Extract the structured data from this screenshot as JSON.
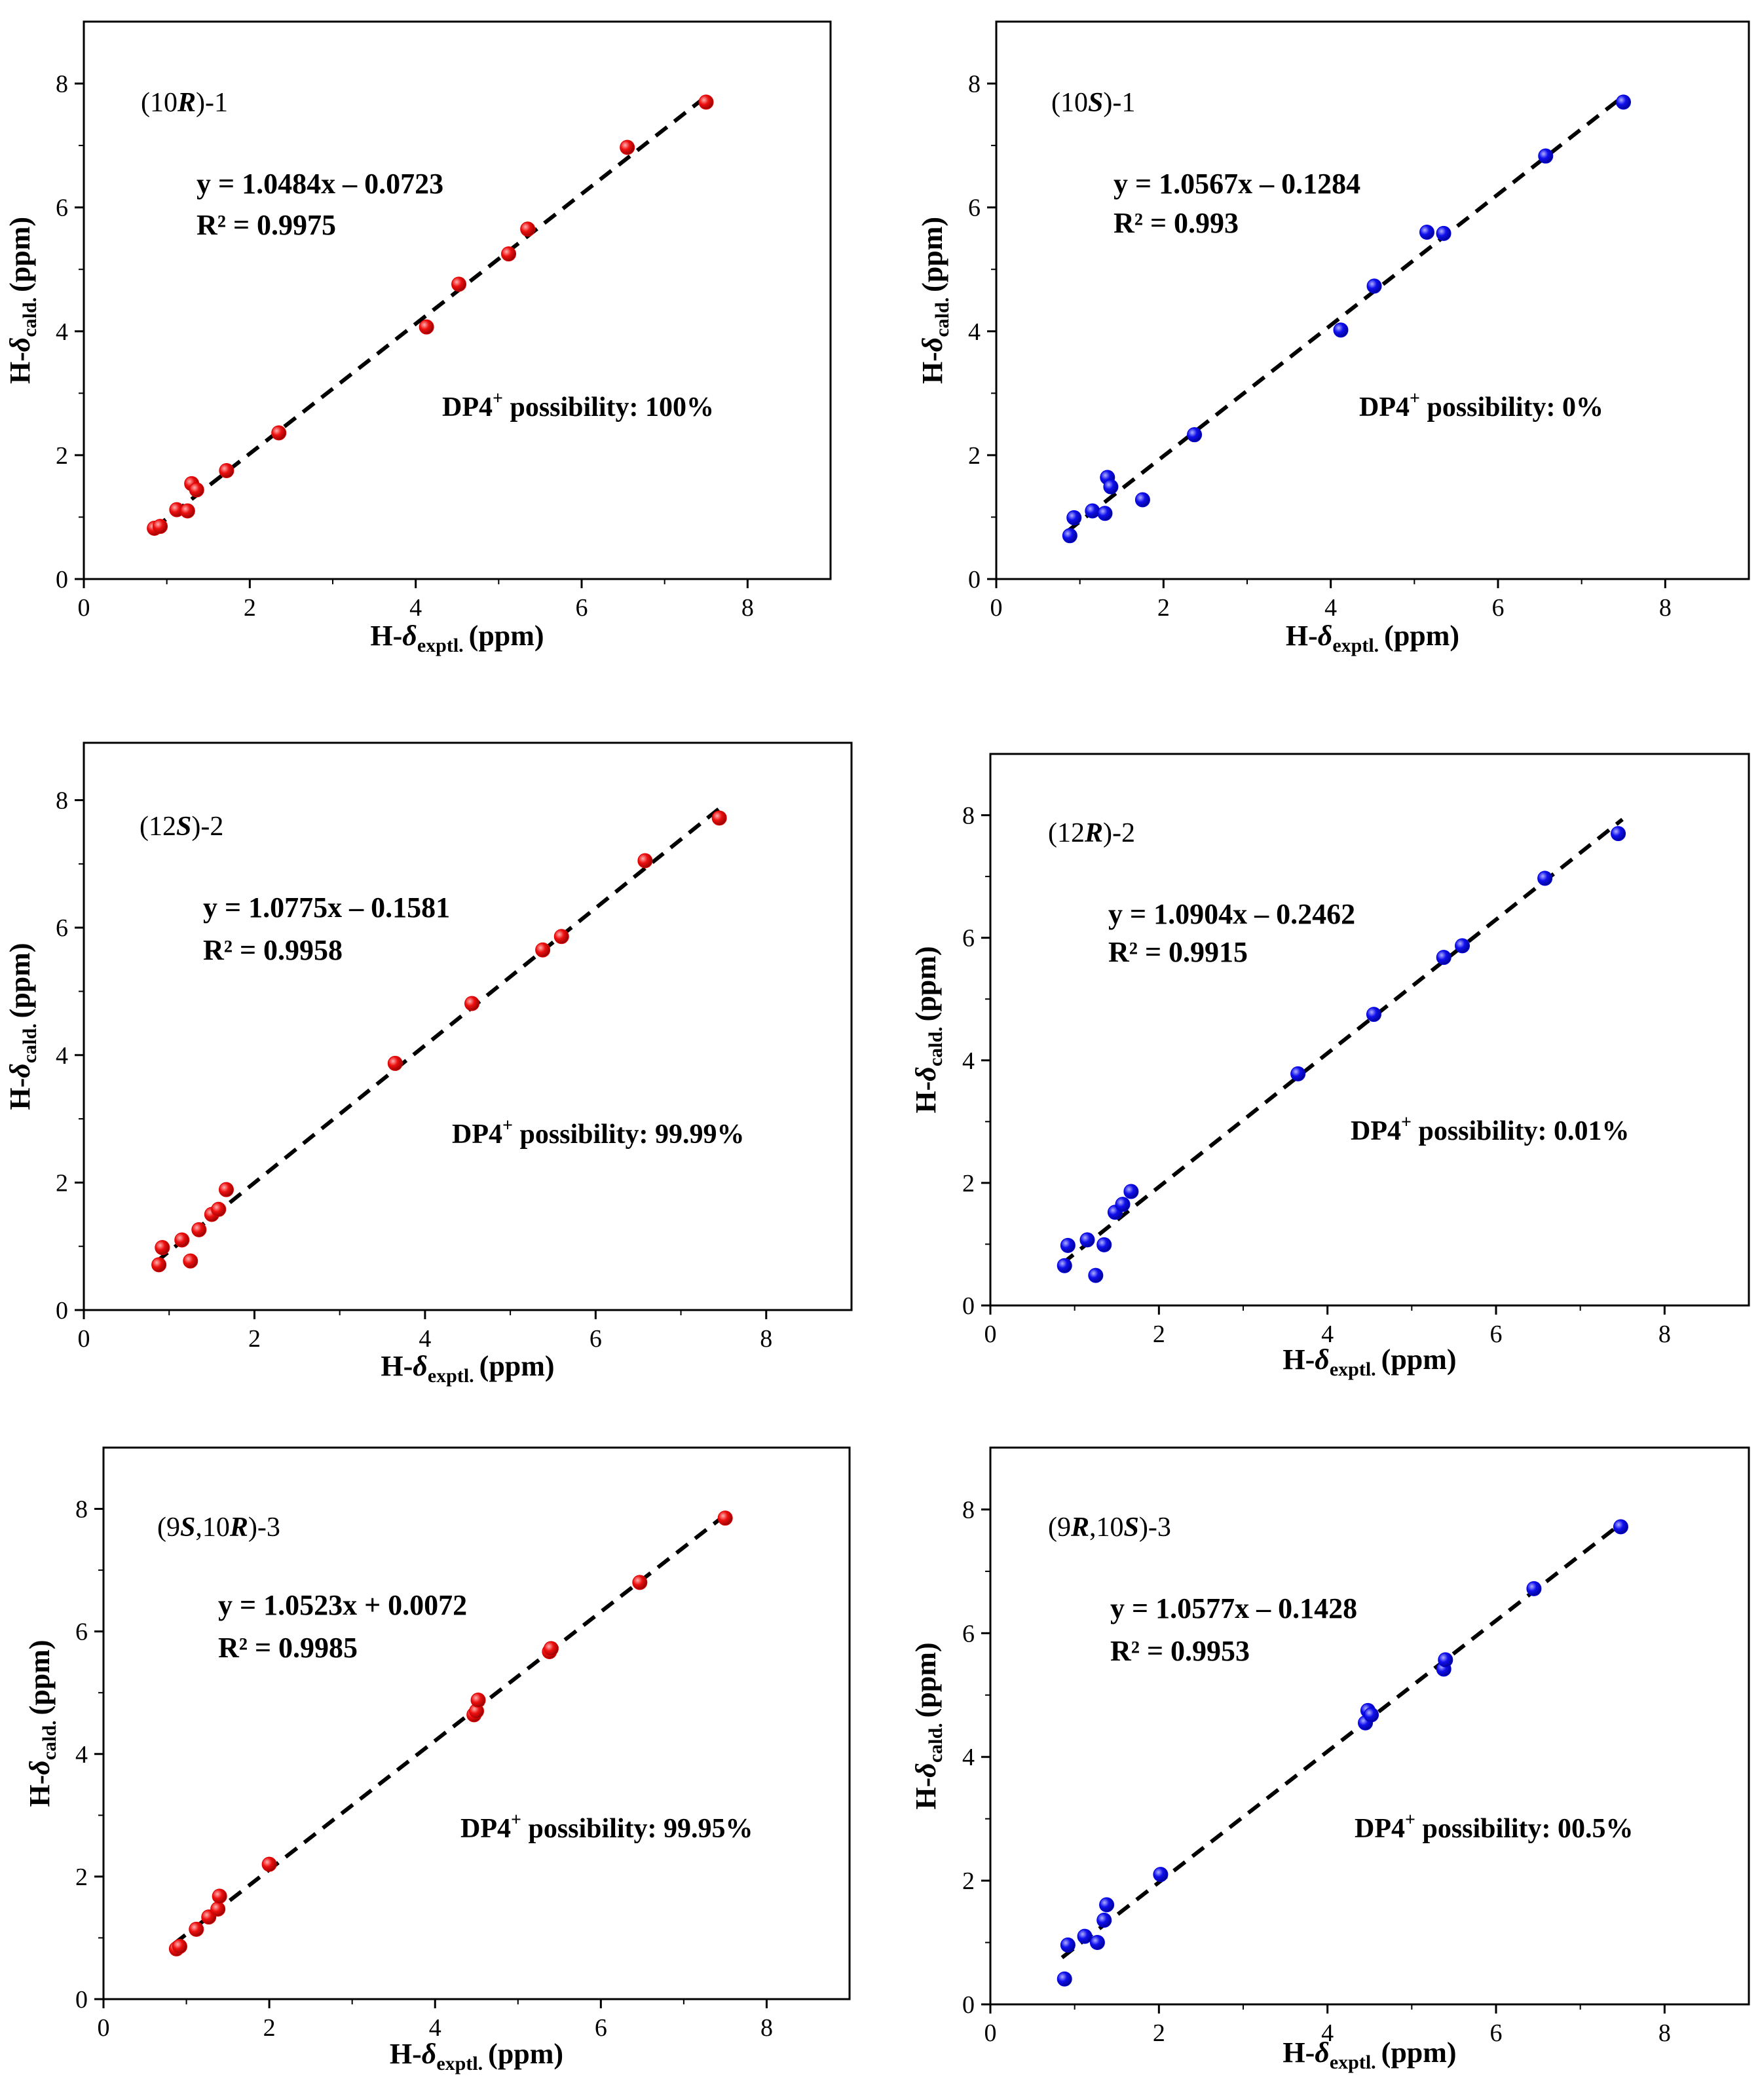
{
  "figure": {
    "axis_unit_label": "(ppm)",
    "axis_prefix": "H-",
    "axis_delta": "δ",
    "x_subscript": "exptl.",
    "y_subscript": "cald.",
    "dp4_label": "DP4",
    "dp4_sup": "+",
    "dp4_text": " possibility: ",
    "colors": {
      "red": "#e00000",
      "blue": "#0000e0",
      "line": "#000000"
    }
  },
  "chart_data": [
    {
      "type": "scatter",
      "id": "p1",
      "title_parts": [
        "(10",
        "R",
        ")-1"
      ],
      "equation": "y = 1.0484x – 0.0723",
      "r2": "R² = 0.9975",
      "dp4_value": "100%",
      "color": "#e00000",
      "slope": 1.0484,
      "intercept": -0.0723,
      "xlim": [
        0,
        9
      ],
      "ylim": [
        0,
        9
      ],
      "xticks": [
        0,
        2,
        4,
        6,
        8
      ],
      "yticks": [
        0,
        2,
        4,
        6,
        8
      ],
      "xlabel": "H-δexptl. (ppm)",
      "ylabel": "H-δcald. (ppm)",
      "x": [
        0.85,
        0.92,
        1.12,
        1.25,
        1.3,
        1.36,
        1.72,
        2.35,
        4.13,
        4.52,
        5.12,
        5.35,
        6.55,
        7.5
      ],
      "y": [
        0.82,
        0.85,
        1.12,
        1.1,
        1.54,
        1.44,
        1.75,
        2.36,
        4.07,
        4.76,
        5.25,
        5.65,
        6.97,
        7.7
      ],
      "fit_x": [
        0.85,
        7.5
      ]
    },
    {
      "type": "scatter",
      "id": "p2",
      "title_parts": [
        "(10",
        "S",
        ")-1"
      ],
      "equation": "y = 1.0567x – 0.1284",
      "r2": "R² = 0.993",
      "dp4_value": "0%",
      "color": "#0000e0",
      "slope": 1.0567,
      "intercept": -0.1284,
      "xlim": [
        0,
        9
      ],
      "ylim": [
        0,
        9
      ],
      "xticks": [
        0,
        2,
        4,
        6,
        8
      ],
      "yticks": [
        0,
        2,
        4,
        6,
        8
      ],
      "xlabel": "H-δexptl. (ppm)",
      "ylabel": "H-δcald. (ppm)",
      "x": [
        0.88,
        0.93,
        1.15,
        1.3,
        1.33,
        1.37,
        1.75,
        2.37,
        4.12,
        4.52,
        5.15,
        5.35,
        6.57,
        7.5
      ],
      "y": [
        0.7,
        0.99,
        1.1,
        1.06,
        1.64,
        1.49,
        1.28,
        2.33,
        4.02,
        4.73,
        5.6,
        5.58,
        6.83,
        7.7
      ],
      "fit_x": [
        0.85,
        7.5
      ]
    },
    {
      "type": "scatter",
      "id": "p3",
      "title_parts": [
        "(12",
        "S",
        ")-2"
      ],
      "equation": "y = 1.0775x – 0.1581",
      "r2": "R² = 0.9958",
      "dp4_value": "99.99%",
      "color": "#e00000",
      "slope": 1.0775,
      "intercept": -0.1581,
      "xlim": [
        0,
        9
      ],
      "ylim": [
        0,
        8.9
      ],
      "xticks": [
        0,
        2,
        4,
        6,
        8
      ],
      "yticks": [
        0,
        2,
        4,
        6,
        8
      ],
      "xlabel": "H-δexptl. (ppm)",
      "ylabel": "H-δcald. (ppm)",
      "x": [
        0.88,
        0.92,
        1.15,
        1.25,
        1.35,
        1.5,
        1.58,
        1.67,
        3.65,
        4.55,
        5.38,
        5.6,
        6.58,
        7.45
      ],
      "y": [
        0.71,
        0.98,
        1.1,
        0.77,
        1.26,
        1.5,
        1.58,
        1.89,
        3.87,
        4.81,
        5.65,
        5.86,
        7.05,
        7.72
      ],
      "fit_x": [
        0.85,
        7.5
      ]
    },
    {
      "type": "scatter",
      "id": "p4",
      "title_parts": [
        "(12",
        "R",
        ")-2"
      ],
      "equation": "y = 1.0904x – 0.2462",
      "r2": "R² = 0.9915",
      "dp4_value": "0.01%",
      "color": "#0000e0",
      "slope": 1.0904,
      "intercept": -0.2462,
      "xlim": [
        0,
        9
      ],
      "ylim": [
        0,
        9
      ],
      "xticks": [
        0,
        2,
        4,
        6,
        8
      ],
      "yticks": [
        0,
        2,
        4,
        6,
        8
      ],
      "xlabel": "H-δexptl. (ppm)",
      "ylabel": "H-δcald. (ppm)",
      "x": [
        0.88,
        0.92,
        1.15,
        1.25,
        1.35,
        1.48,
        1.57,
        1.67,
        3.65,
        4.55,
        5.38,
        5.6,
        6.58,
        7.45
      ],
      "y": [
        0.65,
        0.98,
        1.07,
        0.49,
        0.99,
        1.52,
        1.65,
        1.86,
        3.78,
        4.75,
        5.68,
        5.87,
        6.97,
        7.7
      ],
      "fit_x": [
        0.85,
        7.5
      ]
    },
    {
      "type": "scatter",
      "id": "p5",
      "title_parts": [
        "(9",
        "S",
        ",10",
        "R",
        ")-3"
      ],
      "equation": "y = 1.0523x + 0.0072",
      "r2": "R² = 0.9985",
      "dp4_value": "99.95%",
      "color": "#e00000",
      "slope": 1.0523,
      "intercept": 0.0072,
      "xlim": [
        0,
        9
      ],
      "ylim": [
        0,
        9
      ],
      "xticks": [
        0,
        2,
        4,
        6,
        8
      ],
      "yticks": [
        0,
        2,
        4,
        6,
        8
      ],
      "xlabel": "H-δexptl. (ppm)",
      "ylabel": "H-δcald. (ppm)",
      "x": [
        0.88,
        0.92,
        1.12,
        1.27,
        1.38,
        1.4,
        2.0,
        4.47,
        4.5,
        4.52,
        5.38,
        5.4,
        6.47,
        7.5
      ],
      "y": [
        0.82,
        0.86,
        1.14,
        1.34,
        1.47,
        1.68,
        2.2,
        4.64,
        4.7,
        4.88,
        5.67,
        5.72,
        6.8,
        7.85
      ],
      "fit_x": [
        0.85,
        7.5
      ]
    },
    {
      "type": "scatter",
      "id": "p6",
      "title_parts": [
        "(9",
        "R",
        ",10",
        "S",
        ")-3"
      ],
      "equation": "y = 1.0577x – 0.1428",
      "r2": "R² = 0.9953",
      "dp4_value": "00.5%",
      "color": "#0000e0",
      "slope": 1.0577,
      "intercept": -0.1428,
      "xlim": [
        0,
        9
      ],
      "ylim": [
        0,
        9
      ],
      "xticks": [
        0,
        2,
        4,
        6,
        8
      ],
      "yticks": [
        0,
        2,
        4,
        6,
        8
      ],
      "xlabel": "H-δexptl. (ppm)",
      "ylabel": "H-δcald. (ppm)",
      "x": [
        0.88,
        0.92,
        1.12,
        1.27,
        1.35,
        1.38,
        2.02,
        4.45,
        4.48,
        4.52,
        5.38,
        5.4,
        6.45,
        7.48
      ],
      "y": [
        0.41,
        0.96,
        1.1,
        1.0,
        1.36,
        1.61,
        2.1,
        4.55,
        4.75,
        4.68,
        5.42,
        5.57,
        6.72,
        7.72
      ],
      "fit_x": [
        0.85,
        7.5
      ]
    }
  ]
}
